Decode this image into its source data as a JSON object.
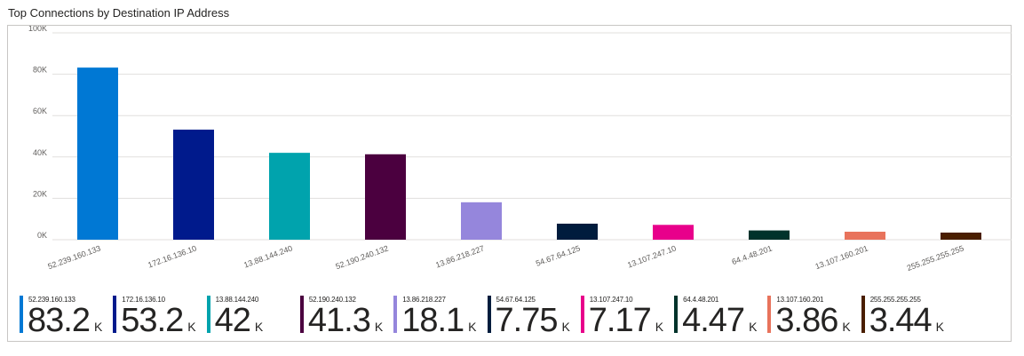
{
  "title": "Top Connections by Destination IP Address",
  "chart_data": {
    "type": "bar",
    "categories": [
      "52.239.160.133",
      "172.16.136.10",
      "13.88.144.240",
      "52.190.240.132",
      "13.86.218.227",
      "54.67.64.125",
      "13.107.247.10",
      "64.4.48.201",
      "13.107.160.201",
      "255.255.255.255"
    ],
    "values": [
      83200,
      53200,
      42000,
      41300,
      18100,
      7750,
      7170,
      4470,
      3860,
      3440
    ],
    "colors": [
      "#0078d4",
      "#001a8c",
      "#00a3ad",
      "#4b003f",
      "#9586dc",
      "#001c3d",
      "#e8008b",
      "#00322b",
      "#e8735c",
      "#4a1e00"
    ],
    "ylim": [
      0,
      100000
    ],
    "yticks": [
      0,
      20000,
      40000,
      60000,
      80000,
      100000
    ],
    "ytick_labels": [
      "0K",
      "20K",
      "40K",
      "60K",
      "80K",
      "100K"
    ],
    "xlabel": "",
    "ylabel": "",
    "grid": true
  },
  "legend": [
    {
      "label": "52.239.160.133",
      "value": "83.2",
      "unit": "K",
      "color": "#0078d4"
    },
    {
      "label": "172.16.136.10",
      "value": "53.2",
      "unit": "K",
      "color": "#001a8c"
    },
    {
      "label": "13.88.144.240",
      "value": "42",
      "unit": "K",
      "color": "#00a3ad"
    },
    {
      "label": "52.190.240.132",
      "value": "41.3",
      "unit": "K",
      "color": "#4b003f"
    },
    {
      "label": "13.86.218.227",
      "value": "18.1",
      "unit": "K",
      "color": "#9586dc"
    },
    {
      "label": "54.67.64.125",
      "value": "7.75",
      "unit": "K",
      "color": "#001c3d"
    },
    {
      "label": "13.107.247.10",
      "value": "7.17",
      "unit": "K",
      "color": "#e8008b"
    },
    {
      "label": "64.4.48.201",
      "value": "4.47",
      "unit": "K",
      "color": "#00322b"
    },
    {
      "label": "13.107.160.201",
      "value": "3.86",
      "unit": "K",
      "color": "#e8735c"
    },
    {
      "label": "255.255.255.255",
      "value": "3.44",
      "unit": "K",
      "color": "#4a1e00"
    }
  ]
}
